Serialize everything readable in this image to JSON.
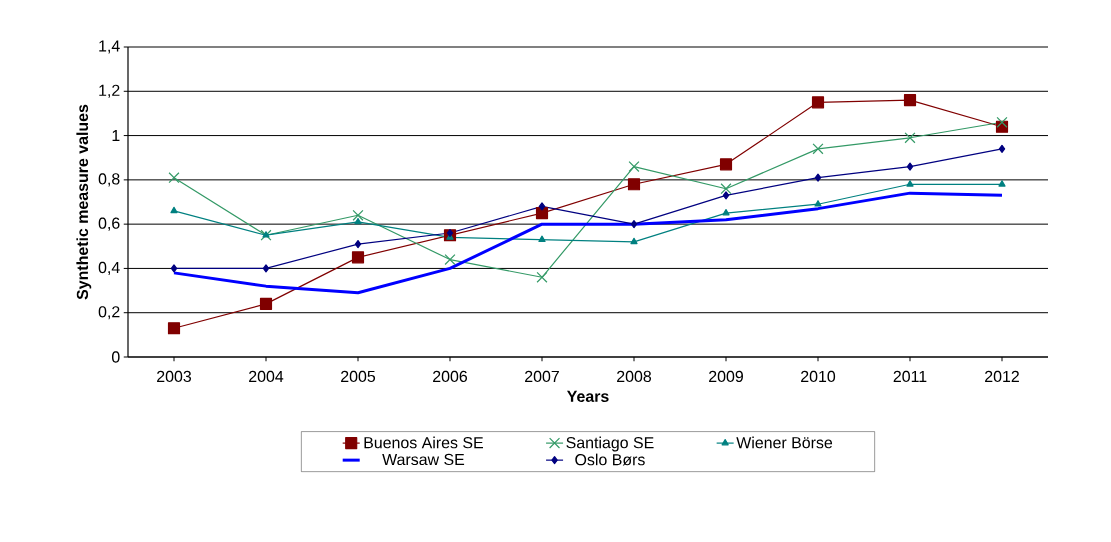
{
  "chart_data": {
    "type": "line",
    "xlabel": "Years",
    "ylabel": "Synthetic measure values",
    "categories": [
      "2003",
      "2004",
      "2005",
      "2006",
      "2007",
      "2008",
      "2009",
      "2010",
      "2011",
      "2012"
    ],
    "ylim": [
      0,
      1.4
    ],
    "yticks": [
      0,
      {
        "value": 0.2,
        "label": "0,2"
      },
      {
        "value": 0.4,
        "label": "0,4"
      },
      {
        "value": 0.6,
        "label": "0,6"
      },
      {
        "value": 0.8,
        "label": "0,8"
      },
      1,
      {
        "value": 1.2,
        "label": "1,2"
      },
      {
        "value": 1.4,
        "label": "1,4"
      }
    ],
    "grid": "y",
    "legend": "bottom",
    "series": [
      {
        "name": "Buenos Aires SE",
        "color": "#800000",
        "marker": "square",
        "values": [
          0.13,
          0.24,
          0.45,
          0.55,
          0.65,
          0.78,
          0.87,
          1.15,
          1.16,
          1.04
        ]
      },
      {
        "name": "Santiago SE",
        "color": "#339966",
        "marker": "cross",
        "values": [
          0.81,
          0.55,
          0.64,
          0.44,
          0.36,
          0.86,
          0.76,
          0.94,
          0.99,
          1.06
        ]
      },
      {
        "name": "Wiener Börse",
        "color": "#008080",
        "marker": "triangle",
        "values": [
          0.66,
          0.55,
          0.61,
          0.54,
          0.53,
          0.52,
          0.65,
          0.69,
          0.78,
          0.78
        ]
      },
      {
        "name": "Warsaw SE",
        "color": "#0000ff",
        "marker": "none",
        "values": [
          0.38,
          0.32,
          0.29,
          0.4,
          0.6,
          0.6,
          0.62,
          0.67,
          0.74,
          0.73
        ]
      },
      {
        "name": "Oslo Børs",
        "color": "#000080",
        "marker": "diamond",
        "values": [
          0.4,
          0.4,
          0.51,
          0.56,
          0.68,
          0.6,
          0.73,
          0.81,
          0.86,
          0.94
        ]
      }
    ]
  }
}
